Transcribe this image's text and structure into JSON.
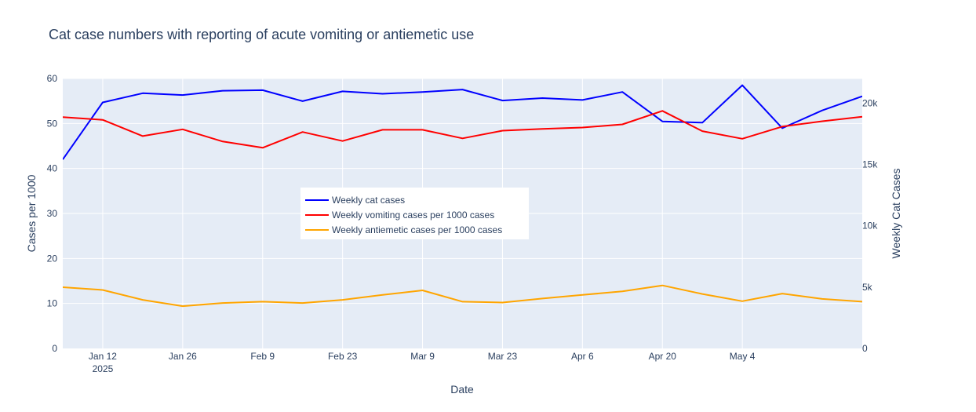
{
  "chart_data": {
    "type": "line",
    "title": "Cat case numbers with reporting of acute vomiting or antiemetic use",
    "xlabel": "Date",
    "ylabel": "Cases per 1000",
    "y2label": "Weekly Cat Cases",
    "ylim": [
      0,
      60
    ],
    "y2lim": [
      0,
      22000
    ],
    "xlim": [
      "2025-01-05",
      "2025-05-25"
    ],
    "grid": true,
    "legend_position": "center",
    "x_ticks": [
      {
        "date": "2025-01-12",
        "label": "Jan 12",
        "sublabel": "2025"
      },
      {
        "date": "2025-01-26",
        "label": "Jan 26"
      },
      {
        "date": "2025-02-09",
        "label": "Feb 9"
      },
      {
        "date": "2025-02-23",
        "label": "Feb 23"
      },
      {
        "date": "2025-03-09",
        "label": "Mar 9"
      },
      {
        "date": "2025-03-23",
        "label": "Mar 23"
      },
      {
        "date": "2025-04-06",
        "label": "Apr 6"
      },
      {
        "date": "2025-04-20",
        "label": "Apr 20"
      },
      {
        "date": "2025-05-04",
        "label": "May 4"
      }
    ],
    "y_ticks": [
      "0",
      "10",
      "20",
      "30",
      "40",
      "50",
      "60"
    ],
    "y2_ticks": [
      {
        "value": 0,
        "label": "0"
      },
      {
        "value": 5000,
        "label": "5k"
      },
      {
        "value": 10000,
        "label": "10k"
      },
      {
        "value": 15000,
        "label": "15k"
      },
      {
        "value": 20000,
        "label": "20k"
      }
    ],
    "x": [
      "2025-01-05",
      "2025-01-12",
      "2025-01-19",
      "2025-01-26",
      "2025-02-02",
      "2025-02-09",
      "2025-02-16",
      "2025-02-23",
      "2025-03-02",
      "2025-03-09",
      "2025-03-16",
      "2025-03-23",
      "2025-03-30",
      "2025-04-06",
      "2025-04-13",
      "2025-04-20",
      "2025-04-27",
      "2025-05-04",
      "2025-05-11",
      "2025-05-18",
      "2025-05-25"
    ],
    "series": [
      {
        "name": "Weekly cat cases",
        "axis": "y2",
        "color": "#0000ff",
        "values": [
          15400,
          20050,
          20800,
          20650,
          21000,
          21050,
          20150,
          20950,
          20750,
          20900,
          21100,
          20200,
          20400,
          20250,
          20900,
          18500,
          18400,
          21450,
          17950,
          19400,
          20550
        ]
      },
      {
        "name": "Weekly vomiting cases per 1000 cases",
        "axis": "y",
        "color": "#ff0000",
        "values": [
          51.4,
          50.8,
          47.2,
          48.7,
          46.0,
          44.6,
          48.1,
          46.1,
          48.6,
          48.6,
          46.7,
          48.4,
          48.8,
          49.1,
          49.8,
          52.8,
          48.3,
          46.6,
          49.3,
          50.5,
          51.5
        ]
      },
      {
        "name": "Weekly antiemetic cases per 1000 cases",
        "axis": "y",
        "color": "#ffa500",
        "values": [
          13.6,
          13.0,
          10.8,
          9.4,
          10.1,
          10.4,
          10.1,
          10.8,
          11.9,
          12.9,
          10.4,
          10.2,
          11.1,
          11.9,
          12.7,
          14.0,
          12.1,
          10.5,
          12.2,
          11.0,
          10.4
        ]
      }
    ]
  }
}
